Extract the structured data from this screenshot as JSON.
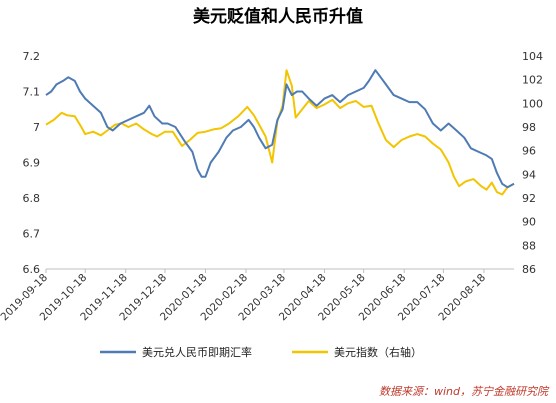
{
  "chart_data": {
    "type": "line",
    "title": "美元贬值和人民币升值",
    "source": "数据来源：wind，苏宁金融研究院",
    "x_ticks": [
      "2019-09-18",
      "2019-10-18",
      "2019-11-18",
      "2019-12-18",
      "2020-01-18",
      "2020-02-18",
      "2020-03-18",
      "2020-04-18",
      "2020-05-18",
      "2020-06-18",
      "2020-07-18",
      "2020-08-18"
    ],
    "x_range": [
      "2019-09-18",
      "2020-09-10"
    ],
    "left_axis": {
      "min": 6.6,
      "max": 7.2,
      "ticks": [
        "6.6",
        "6.7",
        "6.8",
        "6.9",
        "7",
        "7.1",
        "7.2"
      ]
    },
    "right_axis": {
      "min": 86,
      "max": 104,
      "ticks": [
        "86",
        "88",
        "90",
        "92",
        "94",
        "96",
        "98",
        "100",
        "102",
        "104"
      ]
    },
    "legend_position": "bottom",
    "series": [
      {
        "name": "美元兑人民币即期汇率",
        "axis": "left",
        "color": "#4f7bb5",
        "points": [
          [
            "2019-09-18",
            7.09
          ],
          [
            "2019-09-22",
            7.1
          ],
          [
            "2019-09-26",
            7.12
          ],
          [
            "2019-10-01",
            7.13
          ],
          [
            "2019-10-05",
            7.14
          ],
          [
            "2019-10-10",
            7.13
          ],
          [
            "2019-10-14",
            7.1
          ],
          [
            "2019-10-18",
            7.08
          ],
          [
            "2019-10-24",
            7.06
          ],
          [
            "2019-10-30",
            7.04
          ],
          [
            "2019-11-04",
            7.0
          ],
          [
            "2019-11-08",
            6.99
          ],
          [
            "2019-11-14",
            7.01
          ],
          [
            "2019-11-20",
            7.02
          ],
          [
            "2019-11-26",
            7.03
          ],
          [
            "2019-12-02",
            7.04
          ],
          [
            "2019-12-06",
            7.06
          ],
          [
            "2019-12-10",
            7.03
          ],
          [
            "2019-12-16",
            7.01
          ],
          [
            "2019-12-20",
            7.01
          ],
          [
            "2019-12-26",
            7.0
          ],
          [
            "2020-01-02",
            6.96
          ],
          [
            "2020-01-08",
            6.93
          ],
          [
            "2020-01-12",
            6.88
          ],
          [
            "2020-01-15",
            6.86
          ],
          [
            "2020-01-18",
            6.86
          ],
          [
            "2020-01-22",
            6.9
          ],
          [
            "2020-01-28",
            6.93
          ],
          [
            "2020-02-03",
            6.97
          ],
          [
            "2020-02-08",
            6.99
          ],
          [
            "2020-02-14",
            7.0
          ],
          [
            "2020-02-20",
            7.02
          ],
          [
            "2020-02-24",
            7.0
          ],
          [
            "2020-02-28",
            6.97
          ],
          [
            "2020-03-04",
            6.94
          ],
          [
            "2020-03-09",
            6.95
          ],
          [
            "2020-03-13",
            7.02
          ],
          [
            "2020-03-17",
            7.05
          ],
          [
            "2020-03-20",
            7.12
          ],
          [
            "2020-03-24",
            7.09
          ],
          [
            "2020-03-28",
            7.1
          ],
          [
            "2020-04-01",
            7.1
          ],
          [
            "2020-04-06",
            7.08
          ],
          [
            "2020-04-12",
            7.06
          ],
          [
            "2020-04-18",
            7.08
          ],
          [
            "2020-04-24",
            7.09
          ],
          [
            "2020-04-30",
            7.07
          ],
          [
            "2020-05-06",
            7.09
          ],
          [
            "2020-05-12",
            7.1
          ],
          [
            "2020-05-18",
            7.11
          ],
          [
            "2020-05-22",
            7.13
          ],
          [
            "2020-05-27",
            7.16
          ],
          [
            "2020-05-31",
            7.14
          ],
          [
            "2020-06-04",
            7.12
          ],
          [
            "2020-06-10",
            7.09
          ],
          [
            "2020-06-16",
            7.08
          ],
          [
            "2020-06-22",
            7.07
          ],
          [
            "2020-06-28",
            7.07
          ],
          [
            "2020-07-04",
            7.05
          ],
          [
            "2020-07-10",
            7.01
          ],
          [
            "2020-07-16",
            6.99
          ],
          [
            "2020-07-22",
            7.01
          ],
          [
            "2020-07-28",
            6.99
          ],
          [
            "2020-08-03",
            6.97
          ],
          [
            "2020-08-08",
            6.94
          ],
          [
            "2020-08-14",
            6.93
          ],
          [
            "2020-08-20",
            6.92
          ],
          [
            "2020-08-24",
            6.91
          ],
          [
            "2020-08-28",
            6.87
          ],
          [
            "2020-09-01",
            6.84
          ],
          [
            "2020-09-05",
            6.83
          ],
          [
            "2020-09-10",
            6.84
          ]
        ]
      },
      {
        "name": "美元指数（右轴）",
        "axis": "right",
        "color": "#f2c500",
        "points": [
          [
            "2019-09-18",
            98.2
          ],
          [
            "2019-09-24",
            98.6
          ],
          [
            "2019-09-30",
            99.2
          ],
          [
            "2019-10-04",
            99.0
          ],
          [
            "2019-10-10",
            98.9
          ],
          [
            "2019-10-15",
            98.0
          ],
          [
            "2019-10-18",
            97.4
          ],
          [
            "2019-10-24",
            97.6
          ],
          [
            "2019-10-30",
            97.3
          ],
          [
            "2019-11-04",
            97.7
          ],
          [
            "2019-11-10",
            98.2
          ],
          [
            "2019-11-15",
            98.3
          ],
          [
            "2019-11-20",
            98.0
          ],
          [
            "2019-11-26",
            98.3
          ],
          [
            "2019-12-02",
            97.8
          ],
          [
            "2019-12-08",
            97.4
          ],
          [
            "2019-12-12",
            97.2
          ],
          [
            "2019-12-18",
            97.6
          ],
          [
            "2019-12-24",
            97.6
          ],
          [
            "2019-12-31",
            96.4
          ],
          [
            "2020-01-06",
            96.9
          ],
          [
            "2020-01-12",
            97.5
          ],
          [
            "2020-01-18",
            97.6
          ],
          [
            "2020-01-24",
            97.8
          ],
          [
            "2020-01-30",
            97.9
          ],
          [
            "2020-02-05",
            98.3
          ],
          [
            "2020-02-12",
            98.9
          ],
          [
            "2020-02-19",
            99.7
          ],
          [
            "2020-02-24",
            99.0
          ],
          [
            "2020-02-28",
            98.2
          ],
          [
            "2020-03-04",
            97.2
          ],
          [
            "2020-03-09",
            95.0
          ],
          [
            "2020-03-13",
            98.5
          ],
          [
            "2020-03-17",
            99.8
          ],
          [
            "2020-03-20",
            102.8
          ],
          [
            "2020-03-24",
            101.5
          ],
          [
            "2020-03-27",
            98.8
          ],
          [
            "2020-04-01",
            99.5
          ],
          [
            "2020-04-06",
            100.2
          ],
          [
            "2020-04-12",
            99.6
          ],
          [
            "2020-04-18",
            99.9
          ],
          [
            "2020-04-24",
            100.3
          ],
          [
            "2020-04-30",
            99.6
          ],
          [
            "2020-05-06",
            100.0
          ],
          [
            "2020-05-12",
            100.2
          ],
          [
            "2020-05-18",
            99.7
          ],
          [
            "2020-05-24",
            99.8
          ],
          [
            "2020-05-29",
            98.4
          ],
          [
            "2020-06-04",
            96.9
          ],
          [
            "2020-06-10",
            96.3
          ],
          [
            "2020-06-16",
            96.9
          ],
          [
            "2020-06-22",
            97.2
          ],
          [
            "2020-06-28",
            97.4
          ],
          [
            "2020-07-04",
            97.2
          ],
          [
            "2020-07-10",
            96.6
          ],
          [
            "2020-07-16",
            96.1
          ],
          [
            "2020-07-22",
            95.0
          ],
          [
            "2020-07-26",
            93.8
          ],
          [
            "2020-07-30",
            93.0
          ],
          [
            "2020-08-04",
            93.4
          ],
          [
            "2020-08-10",
            93.6
          ],
          [
            "2020-08-16",
            93.0
          ],
          [
            "2020-08-20",
            92.7
          ],
          [
            "2020-08-24",
            93.3
          ],
          [
            "2020-08-28",
            92.5
          ],
          [
            "2020-09-01",
            92.3
          ],
          [
            "2020-09-05",
            92.9
          ],
          [
            "2020-09-10",
            93.2
          ]
        ]
      }
    ]
  }
}
